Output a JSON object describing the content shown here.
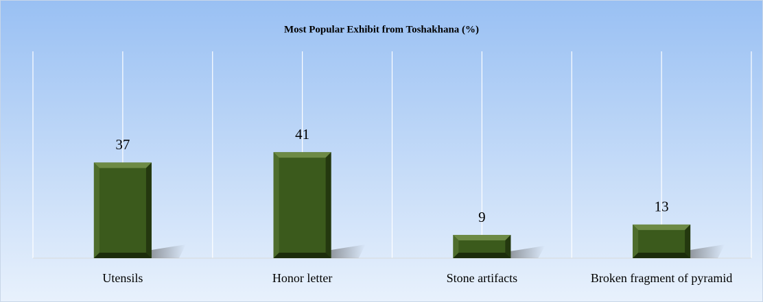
{
  "chart_data": {
    "type": "bar",
    "title": "Most Popular Exhibit from Toshakhana (%)",
    "categories": [
      "Utensils",
      "Honor letter",
      "Stone artifacts",
      "Broken fragment of pyramid"
    ],
    "values": [
      37,
      41,
      9,
      13
    ],
    "color": "#3b5a1c",
    "ylim": [
      0,
      80
    ]
  }
}
